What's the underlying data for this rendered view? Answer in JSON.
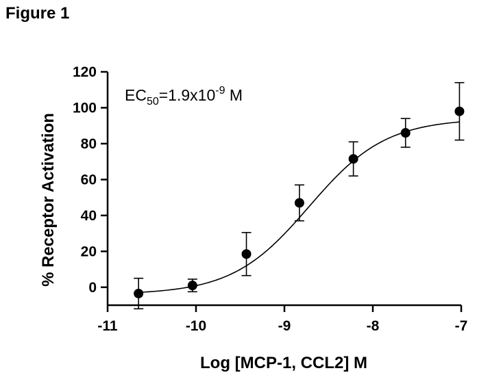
{
  "figure_label": "Figure 1",
  "chart_data": {
    "type": "scatter",
    "title": "",
    "xlabel": "Log [MCP-1, CCL2] M",
    "ylabel": "% Receptor Activation",
    "xlim": [
      -11,
      -7
    ],
    "ylim": [
      -10,
      120
    ],
    "xticks": [
      -11,
      -10,
      -9,
      -8,
      -7
    ],
    "yticks": [
      0,
      20,
      40,
      60,
      80,
      100,
      120
    ],
    "grid": false,
    "annotation": {
      "text_main": "EC",
      "subscript": "50",
      "text_value": "=1.9x10",
      "superscript": "-9",
      "text_unit": " M"
    },
    "series": [
      {
        "x": [
          -10.65,
          -10.04,
          -9.43,
          -8.83,
          -8.22,
          -7.63,
          -7.02
        ],
        "y": [
          -3.5,
          1,
          18.5,
          47,
          71.5,
          86,
          98
        ],
        "error": [
          8.5,
          3.5,
          12,
          10,
          9.5,
          8,
          16
        ]
      }
    ],
    "fit": {
      "model": "sigmoidal dose-response",
      "bottom": -4,
      "top": 94,
      "log_ec50": -8.72,
      "hill_slope": 1
    }
  }
}
